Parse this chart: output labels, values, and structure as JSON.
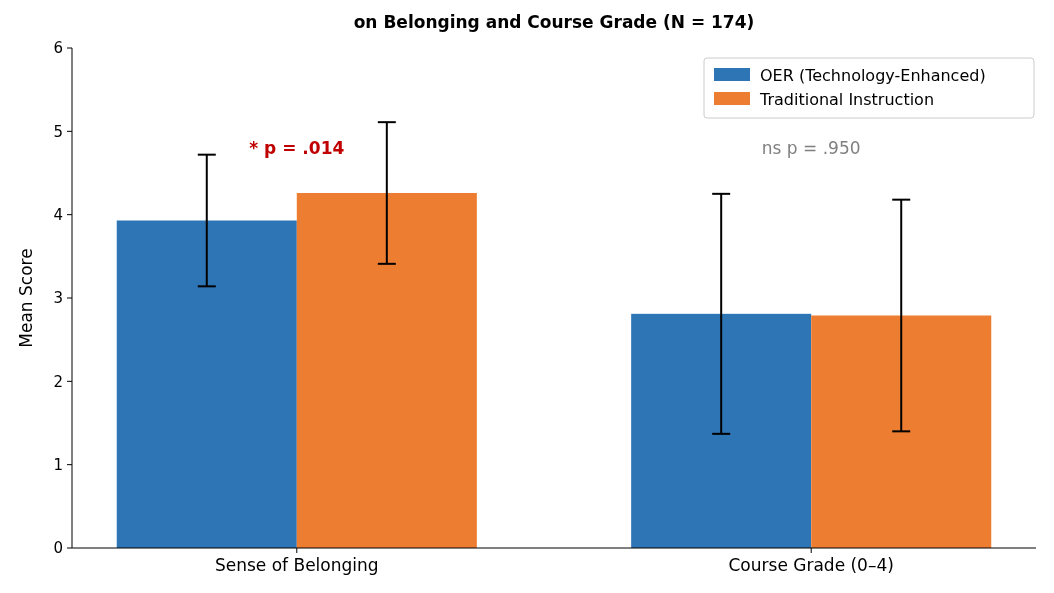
{
  "chart_data": {
    "type": "bar",
    "title": "on Belonging and Course Grade (N = 174)",
    "ylabel": "Mean Score",
    "categories": [
      "Sense of Belonging",
      "Course Grade (0–4)"
    ],
    "series": [
      {
        "name": "OER (Technology-Enhanced)",
        "color": "#2e75b6",
        "values": [
          3.93,
          2.81
        ],
        "errors": [
          0.79,
          1.44
        ]
      },
      {
        "name": "Traditional Instruction",
        "color": "#ed7d31",
        "values": [
          4.26,
          2.79
        ],
        "errors": [
          0.85,
          1.39
        ]
      }
    ],
    "ylim": [
      0,
      6
    ],
    "yticks": [
      0,
      1,
      2,
      3,
      4,
      5,
      6
    ],
    "legend": "top right",
    "grid": false,
    "annotations": [
      "* p = .014",
      "ns p = .950"
    ]
  }
}
